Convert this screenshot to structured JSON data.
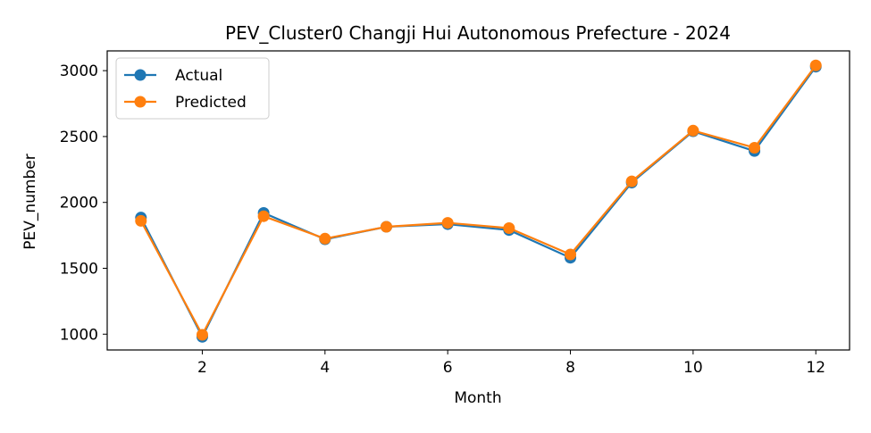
{
  "chart_data": {
    "type": "line",
    "title": "PEV_Cluster0 Changji Hui Autonomous Prefecture - 2024",
    "xlabel": "Month",
    "ylabel": "PEV_number",
    "x": [
      1,
      2,
      3,
      4,
      5,
      6,
      7,
      8,
      9,
      10,
      11,
      12
    ],
    "series": [
      {
        "name": "Actual",
        "color": "#1f77b4",
        "marker": "circle",
        "values": [
          1885,
          980,
          1920,
          1720,
          1815,
          1835,
          1790,
          1580,
          2150,
          2540,
          2390,
          3030
        ]
      },
      {
        "name": "Predicted",
        "color": "#ff7f0e",
        "marker": "circle",
        "values": [
          1860,
          995,
          1895,
          1725,
          1815,
          1845,
          1805,
          1605,
          2160,
          2545,
          2415,
          3040
        ]
      }
    ],
    "xlim": [
      0.45,
      12.55
    ],
    "ylim": [
      880,
      3150
    ],
    "xticks": [
      2,
      4,
      6,
      8,
      10,
      12
    ],
    "yticks": [
      1000,
      1500,
      2000,
      2500,
      3000
    ],
    "grid": false,
    "legend": "upper left"
  }
}
